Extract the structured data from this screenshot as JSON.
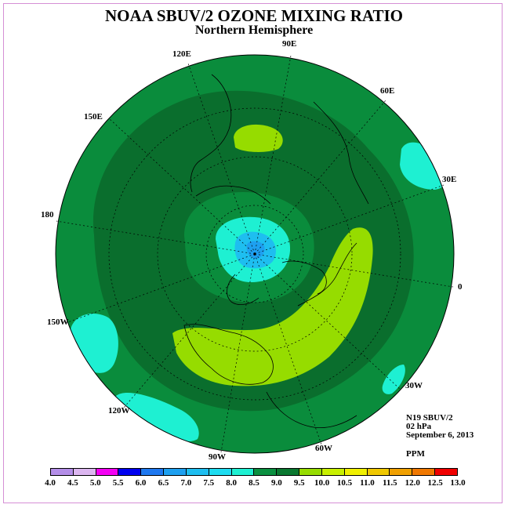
{
  "header": {
    "title": "NOAA SBUV/2 OZONE MIXING RATIO",
    "subtitle": "Northern Hemisphere"
  },
  "meridian_labels": [
    "90E",
    "60E",
    "30E",
    "0",
    "30W",
    "60W",
    "90W",
    "120W",
    "150W",
    "180",
    "150E",
    "120E"
  ],
  "info": {
    "instrument": "N19 SBUV/2",
    "level": "02 hPa",
    "date": "September 6, 2013",
    "unit": "PPM"
  },
  "colorbar": {
    "ticks": [
      "4.0",
      "4.5",
      "5.0",
      "5.5",
      "6.0",
      "6.5",
      "7.0",
      "7.5",
      "8.0",
      "8.5",
      "9.0",
      "9.5",
      "10.0",
      "10.5",
      "11.0",
      "11.5",
      "12.0",
      "12.5",
      "13.0"
    ],
    "colors": [
      "#b48ee8",
      "#dcb6f0",
      "#f400f4",
      "#0000f0",
      "#1e78f0",
      "#1ea0f0",
      "#1ebef0",
      "#1edcf0",
      "#1ef0d2",
      "#0a9040",
      "#0a7830",
      "#96dc00",
      "#c8f000",
      "#f0f000",
      "#f0c800",
      "#f0a000",
      "#f07800",
      "#f00000",
      "#8c5028"
    ]
  },
  "map_colors": {
    "level_8_0_8_5": "#0a8c3c",
    "level_8_5_9_0": "#0a6e2d",
    "level_9_0_9_5": "#96dc00",
    "level_7_5_8_0": "#1ef0d2",
    "level_7_0_7_5": "#1ebef0",
    "level_6_5_7_0": "#1ea0f0"
  }
}
